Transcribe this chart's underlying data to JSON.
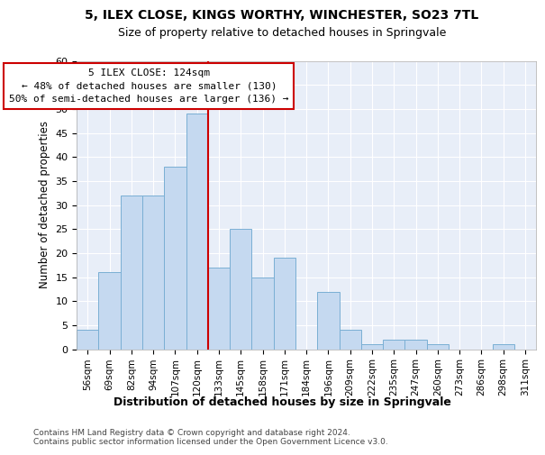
{
  "title": "5, ILEX CLOSE, KINGS WORTHY, WINCHESTER, SO23 7TL",
  "subtitle": "Size of property relative to detached houses in Springvale",
  "xlabel": "Distribution of detached houses by size in Springvale",
  "ylabel": "Number of detached properties",
  "footer_line1": "Contains HM Land Registry data © Crown copyright and database right 2024.",
  "footer_line2": "Contains public sector information licensed under the Open Government Licence v3.0.",
  "bin_labels": [
    "56sqm",
    "69sqm",
    "82sqm",
    "94sqm",
    "107sqm",
    "120sqm",
    "133sqm",
    "145sqm",
    "158sqm",
    "171sqm",
    "184sqm",
    "196sqm",
    "209sqm",
    "222sqm",
    "235sqm",
    "247sqm",
    "260sqm",
    "273sqm",
    "286sqm",
    "298sqm",
    "311sqm"
  ],
  "bar_values": [
    4,
    16,
    32,
    32,
    38,
    49,
    17,
    25,
    15,
    19,
    0,
    12,
    4,
    1,
    2,
    2,
    1,
    0,
    0,
    1,
    0
  ],
  "bar_color": "#c5d9f0",
  "bar_edgecolor": "#7aafd4",
  "bg_color": "#e8eef8",
  "grid_color": "#ffffff",
  "vline_x": 5.5,
  "vline_color": "#cc0000",
  "annotation_line1": "5 ILEX CLOSE: 124sqm",
  "annotation_line2": "← 48% of detached houses are smaller (130)",
  "annotation_line3": "50% of semi-detached houses are larger (136) →",
  "annotation_box_edgecolor": "#cc0000",
  "ylim": [
    0,
    60
  ],
  "yticks": [
    0,
    5,
    10,
    15,
    20,
    25,
    30,
    35,
    40,
    45,
    50,
    55,
    60
  ]
}
